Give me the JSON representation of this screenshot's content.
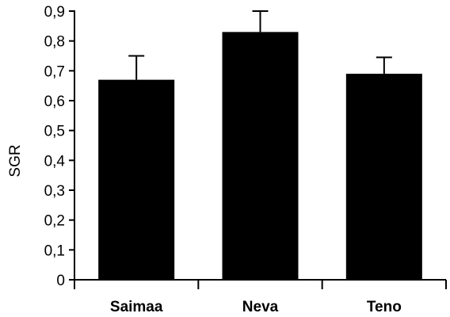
{
  "chart_data": {
    "type": "bar",
    "title": "",
    "xlabel": "",
    "ylabel": "SGR",
    "categories": [
      "Saimaa",
      "Neva",
      "Teno"
    ],
    "values": [
      0.67,
      0.83,
      0.69
    ],
    "error_upper": [
      0.75,
      0.9,
      0.745
    ],
    "ylim": [
      0,
      0.9
    ],
    "yticks": [
      "0",
      "0,1",
      "0,2",
      "0,3",
      "0,4",
      "0,5",
      "0,6",
      "0,7",
      "0,8",
      "0,9"
    ],
    "grid": false,
    "legend": "none",
    "bar_color": "#000000"
  }
}
